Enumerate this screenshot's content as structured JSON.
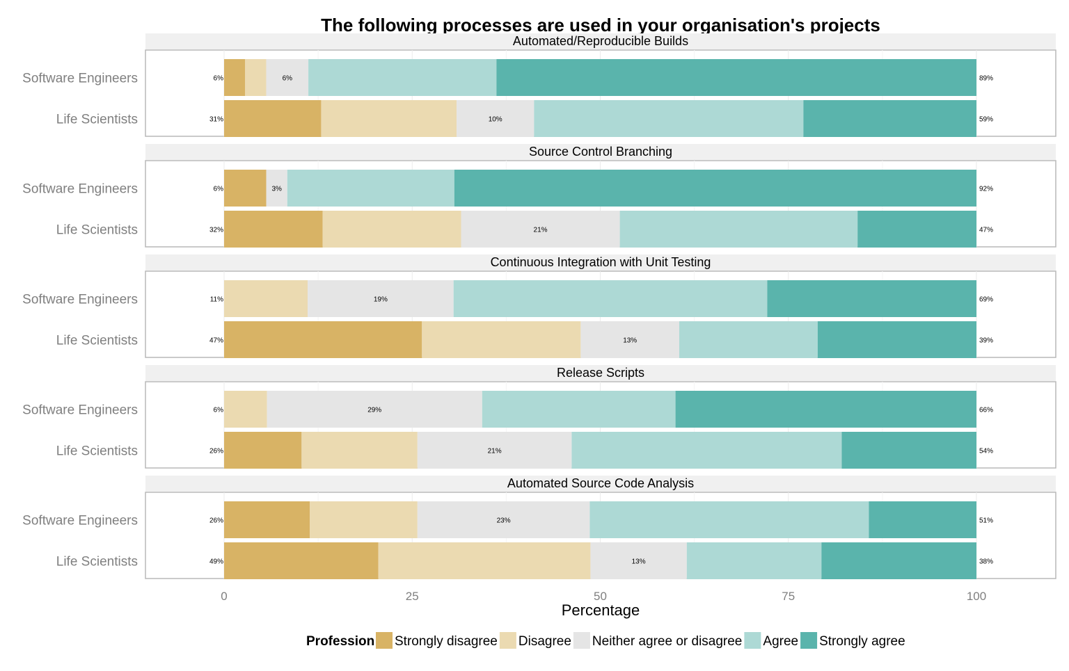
{
  "chart_data": {
    "type": "bar",
    "orientation": "horizontal",
    "stacked": true,
    "title": "The following processes are used in your organisation's projects",
    "xlabel": "Percentage",
    "ylabel": "",
    "xlim": [
      -10,
      100
    ],
    "x_ticks": [
      0,
      25,
      50,
      75,
      100
    ],
    "x_tick_labels": [
      "0",
      "25",
      "50",
      "75",
      "100"
    ],
    "grid": true,
    "legend": {
      "position": "bottom",
      "title": "Profession",
      "entries": [
        "Strongly disagree",
        "Disagree",
        "Neither agree or disagree",
        "Agree",
        "Strongly agree"
      ]
    },
    "colors": {
      "Strongly disagree": "#d8b365",
      "Disagree": "#ebdab1",
      "Neither agree or disagree": "#e5e5e5",
      "Agree": "#add9d5",
      "Strongly agree": "#5ab4ac"
    },
    "categories": [
      "Software Engineers",
      "Life Scientists"
    ],
    "panels": [
      {
        "title": "Automated/Reproducible Builds",
        "rows": [
          {
            "category": "Software Engineers",
            "values": [
              2.8,
              2.8,
              5.6,
              25,
              63.8
            ],
            "left_label": "6%",
            "mid_label": "6%",
            "right_label": "89%"
          },
          {
            "category": "Life Scientists",
            "values": [
              12.9,
              18,
              10.3,
              35.8,
              23
            ],
            "left_label": "31%",
            "mid_label": "10%",
            "right_label": "59%"
          }
        ]
      },
      {
        "title": "Source Control Branching",
        "rows": [
          {
            "category": "Software Engineers",
            "values": [
              5.6,
              0,
              2.8,
              22.2,
              69.4
            ],
            "left_label": "6%",
            "mid_label": "3%",
            "right_label": "92%"
          },
          {
            "category": "Life Scientists",
            "values": [
              13.1,
              18.4,
              21.1,
              31.6,
              15.8
            ],
            "left_label": "32%",
            "mid_label": "21%",
            "right_label": "47%"
          }
        ]
      },
      {
        "title": "Continuous Integration with Unit Testing",
        "rows": [
          {
            "category": "Software Engineers",
            "values": [
              0,
              11.1,
              19.4,
              41.7,
              27.8
            ],
            "left_label": "11%",
            "mid_label": "19%",
            "right_label": "69%"
          },
          {
            "category": "Life Scientists",
            "values": [
              26.3,
              21.1,
              13.1,
              18.4,
              21.1
            ],
            "left_label": "47%",
            "mid_label": "13%",
            "right_label": "39%"
          }
        ]
      },
      {
        "title": "Release Scripts",
        "rows": [
          {
            "category": "Software Engineers",
            "values": [
              0,
              5.7,
              28.6,
              25.7,
              40
            ],
            "left_label": "6%",
            "mid_label": "29%",
            "right_label": "66%"
          },
          {
            "category": "Life Scientists",
            "values": [
              10.3,
              15.4,
              20.5,
              35.9,
              17.9
            ],
            "left_label": "26%",
            "mid_label": "21%",
            "right_label": "54%"
          }
        ]
      },
      {
        "title": "Automated Source Code Analysis",
        "rows": [
          {
            "category": "Software Engineers",
            "values": [
              11.4,
              14.3,
              22.9,
              37.1,
              14.3
            ],
            "left_label": "26%",
            "mid_label": "23%",
            "right_label": "51%"
          },
          {
            "category": "Life Scientists",
            "values": [
              20.5,
              28.2,
              12.8,
              17.9,
              20.6
            ],
            "left_label": "49%",
            "mid_label": "13%",
            "right_label": "38%"
          }
        ]
      }
    ]
  }
}
